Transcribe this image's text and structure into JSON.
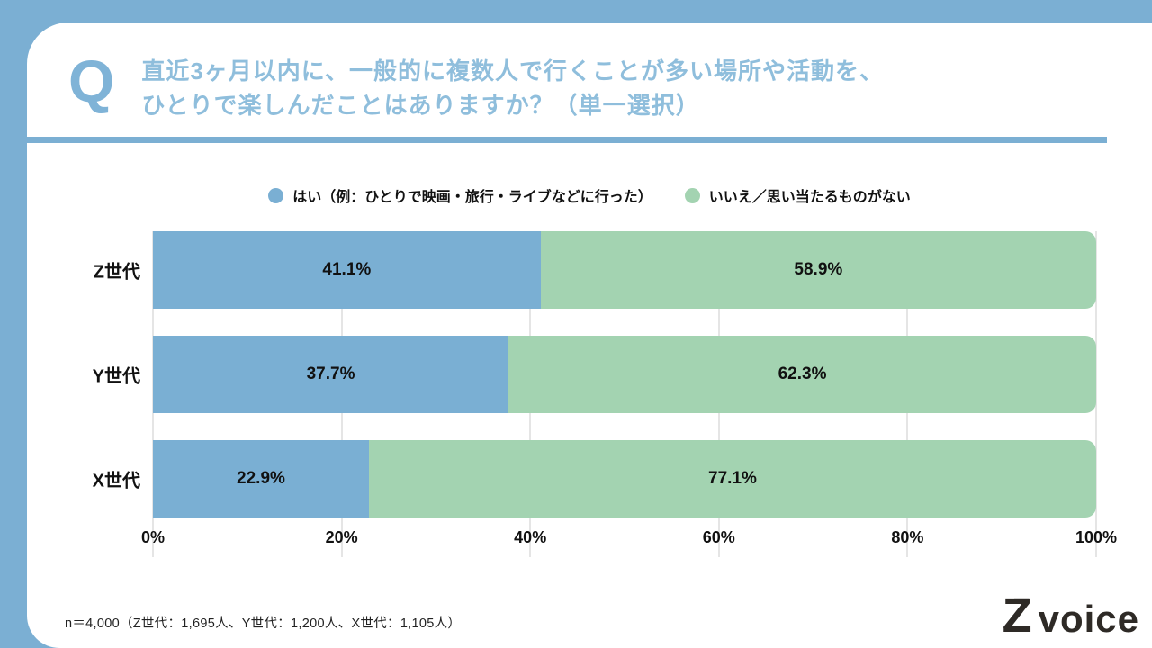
{
  "frame": {
    "accent_color": "#7BAFD3"
  },
  "header": {
    "q_mark": "Q",
    "title_line1": "直近3ヶ月以内に、一般的に複数人で行くことが多い場所や活動を、",
    "title_line2": "ひとりで楽しんだことはありますか？（単一選択）"
  },
  "chart_data": {
    "type": "bar",
    "orientation": "horizontal",
    "stacked": true,
    "title": "",
    "categories": [
      "Z世代",
      "Y世代",
      "X世代"
    ],
    "series": [
      {
        "name": "はい（例：ひとりで映画・旅行・ライブなどに行った）",
        "color": "#7AAFD3",
        "values": [
          41.1,
          37.7,
          22.9
        ]
      },
      {
        "name": "いいえ／思い当たるものがない",
        "color": "#A3D3B1",
        "values": [
          58.9,
          62.3,
          77.1
        ]
      }
    ],
    "value_label_suffix": "%",
    "x_ticks": [
      "0%",
      "20%",
      "40%",
      "60%",
      "80%",
      "100%"
    ],
    "xlim": [
      0,
      100
    ],
    "grid": true,
    "legend_position": "top"
  },
  "footer": {
    "note": "n＝4,000（Z世代：1,695人、Y世代：1,200人、X世代：1,105人）",
    "logo": {
      "z": "Z",
      "text": "voice",
      "orange": "#EE9420",
      "dark": "#2E2A26"
    }
  }
}
